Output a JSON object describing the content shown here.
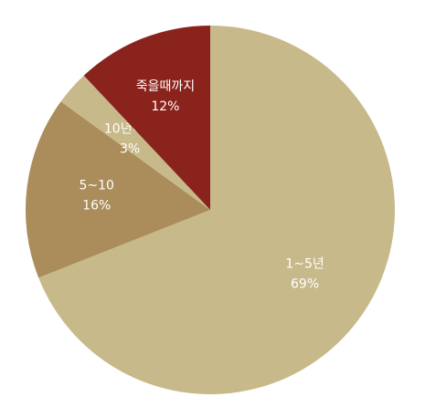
{
  "chart_data": {
    "type": "pie",
    "slices": [
      {
        "label": "1~5년",
        "value": 69,
        "value_label": "69%",
        "color": "#C8B98A"
      },
      {
        "label": "5~10",
        "value": 16,
        "value_label": "16%",
        "color": "#AB8C5B"
      },
      {
        "label": "10년이상",
        "value": 3,
        "value_label": "3%",
        "color": "#C8B98A"
      },
      {
        "label": "죽을때까지",
        "value": 12,
        "value_label": "12%",
        "color": "#8B231D"
      }
    ],
    "start_angle": "12 o'clock",
    "direction": "clockwise",
    "legend": "none",
    "labels": "inside slices"
  }
}
